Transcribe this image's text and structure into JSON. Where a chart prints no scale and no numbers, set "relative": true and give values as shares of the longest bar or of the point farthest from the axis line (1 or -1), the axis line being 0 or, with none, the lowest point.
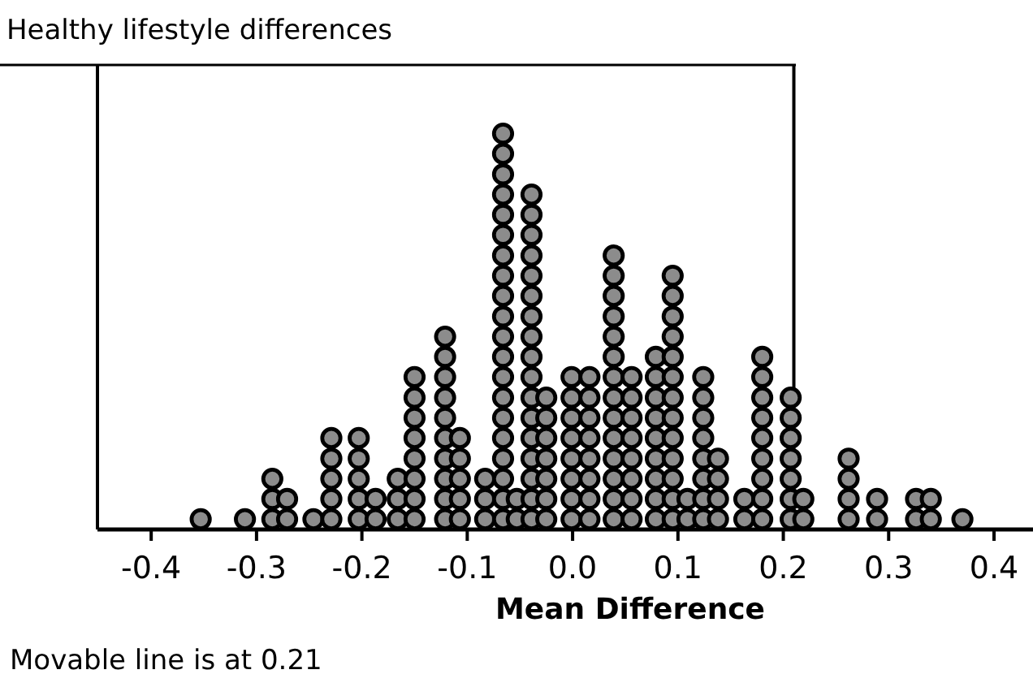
{
  "chart_data": {
    "type": "scatter",
    "relative": true,
    "title": "Healthy lifestyle differences",
    "xlabel": "Mean Difference",
    "annotations": [
      "Movable line is at 0.21"
    ],
    "marker": "circle",
    "tick_labels": "x",
    "xlim": [
      -0.451,
      0.437
    ],
    "xticks": [
      -0.4,
      -0.3,
      -0.2,
      -0.1,
      {
        "value": 0,
        "label": "0.0"
      },
      0.1,
      0.2,
      0.3,
      0.4
    ],
    "ref_lines": [
      {
        "axis": "x",
        "value": 0.21,
        "color": "#000000"
      }
    ],
    "series": [
      {
        "color": "#8c8c8c",
        "x": [
          -0.353
        ],
        "values": [
          0.026
        ]
      },
      {
        "color": "#8c8c8c",
        "x": [
          -0.311
        ],
        "values": [
          0.026
        ]
      },
      {
        "color": "#8c8c8c",
        "x": [
          -0.285,
          -0.285,
          -0.285
        ],
        "values": [
          0.026,
          0.077,
          0.128
        ]
      },
      {
        "color": "#8c8c8c",
        "x": [
          -0.271,
          -0.271
        ],
        "values": [
          0.026,
          0.077
        ]
      },
      {
        "color": "#8c8c8c",
        "x": [
          -0.246
        ],
        "values": [
          0.026
        ]
      },
      {
        "color": "#8c8c8c",
        "x": [
          -0.229,
          -0.229,
          -0.229,
          -0.229,
          -0.229
        ],
        "values": [
          0.026,
          0.077,
          0.128,
          0.179,
          0.231
        ]
      },
      {
        "color": "#8c8c8c",
        "x": [
          -0.203,
          -0.203,
          -0.203,
          -0.203,
          -0.203
        ],
        "values": [
          0.026,
          0.077,
          0.128,
          0.179,
          0.231
        ]
      },
      {
        "color": "#8c8c8c",
        "x": [
          -0.187,
          -0.187
        ],
        "values": [
          0.026,
          0.077
        ]
      },
      {
        "color": "#8c8c8c",
        "x": [
          -0.166,
          -0.166,
          -0.166
        ],
        "values": [
          0.026,
          0.077,
          0.128
        ]
      },
      {
        "color": "#8c8c8c",
        "x": [
          -0.15,
          -0.15,
          -0.15,
          -0.15,
          -0.15,
          -0.15,
          -0.15,
          -0.15
        ],
        "values": [
          0.026,
          0.077,
          0.128,
          0.179,
          0.231,
          0.282,
          0.333,
          0.385
        ]
      },
      {
        "color": "#8c8c8c",
        "x": [
          -0.121,
          -0.121,
          -0.121,
          -0.121,
          -0.121,
          -0.121,
          -0.121,
          -0.121,
          -0.121,
          -0.121
        ],
        "values": [
          0.026,
          0.077,
          0.128,
          0.179,
          0.231,
          0.282,
          0.333,
          0.385,
          0.436,
          0.487
        ]
      },
      {
        "color": "#8c8c8c",
        "x": [
          -0.107,
          -0.107,
          -0.107,
          -0.107,
          -0.107
        ],
        "values": [
          0.026,
          0.077,
          0.128,
          0.179,
          0.231
        ]
      },
      {
        "color": "#8c8c8c",
        "x": [
          -0.083,
          -0.083,
          -0.083
        ],
        "values": [
          0.026,
          0.077,
          0.128
        ]
      },
      {
        "color": "#8c8c8c",
        "x": [
          -0.066,
          -0.066,
          -0.066,
          -0.066,
          -0.066,
          -0.066,
          -0.066,
          -0.066,
          -0.066,
          -0.066,
          -0.066,
          -0.066,
          -0.066,
          -0.066,
          -0.066,
          -0.066,
          -0.066,
          -0.066,
          -0.066,
          -0.066
        ],
        "values": [
          0.026,
          0.077,
          0.128,
          0.179,
          0.231,
          0.282,
          0.333,
          0.385,
          0.436,
          0.487,
          0.538,
          0.59,
          0.641,
          0.692,
          0.744,
          0.795,
          0.846,
          0.897,
          0.949,
          1
        ]
      },
      {
        "color": "#8c8c8c",
        "x": [
          -0.053,
          -0.053
        ],
        "values": [
          0.026,
          0.077
        ]
      },
      {
        "color": "#8c8c8c",
        "x": [
          -0.039,
          -0.039,
          -0.039,
          -0.039,
          -0.039,
          -0.039,
          -0.039,
          -0.039,
          -0.039,
          -0.039,
          -0.039,
          -0.039,
          -0.039,
          -0.039,
          -0.039,
          -0.039,
          -0.039
        ],
        "values": [
          0.026,
          0.077,
          0.128,
          0.179,
          0.231,
          0.282,
          0.333,
          0.385,
          0.436,
          0.487,
          0.538,
          0.59,
          0.641,
          0.692,
          0.744,
          0.795,
          0.846
        ]
      },
      {
        "color": "#8c8c8c",
        "x": [
          -0.025,
          -0.025,
          -0.025,
          -0.025,
          -0.025,
          -0.025,
          -0.025
        ],
        "values": [
          0.026,
          0.077,
          0.128,
          0.179,
          0.231,
          0.282,
          0.333
        ]
      },
      {
        "color": "#8c8c8c",
        "x": [
          -0.001,
          -0.001,
          -0.001,
          -0.001,
          -0.001,
          -0.001,
          -0.001,
          -0.001
        ],
        "values": [
          0.026,
          0.077,
          0.128,
          0.179,
          0.231,
          0.282,
          0.333,
          0.385
        ]
      },
      {
        "color": "#8c8c8c",
        "x": [
          0.016,
          0.016,
          0.016,
          0.016,
          0.016,
          0.016,
          0.016,
          0.016
        ],
        "values": [
          0.026,
          0.077,
          0.128,
          0.179,
          0.231,
          0.282,
          0.333,
          0.385
        ]
      },
      {
        "color": "#8c8c8c",
        "x": [
          0.039,
          0.039,
          0.039,
          0.039,
          0.039,
          0.039,
          0.039,
          0.039,
          0.039,
          0.039,
          0.039,
          0.039,
          0.039,
          0.039
        ],
        "values": [
          0.026,
          0.077,
          0.128,
          0.179,
          0.231,
          0.282,
          0.333,
          0.385,
          0.436,
          0.487,
          0.538,
          0.59,
          0.641,
          0.692
        ]
      },
      {
        "color": "#8c8c8c",
        "x": [
          0.056,
          0.056,
          0.056,
          0.056,
          0.056,
          0.056,
          0.056,
          0.056
        ],
        "values": [
          0.026,
          0.077,
          0.128,
          0.179,
          0.231,
          0.282,
          0.333,
          0.385
        ]
      },
      {
        "color": "#8c8c8c",
        "x": [
          0.079,
          0.079,
          0.079,
          0.079,
          0.079,
          0.079,
          0.079,
          0.079,
          0.079
        ],
        "values": [
          0.026,
          0.077,
          0.128,
          0.179,
          0.231,
          0.282,
          0.333,
          0.385,
          0.436
        ]
      },
      {
        "color": "#8c8c8c",
        "x": [
          0.095,
          0.095,
          0.095,
          0.095,
          0.095,
          0.095,
          0.095,
          0.095,
          0.095,
          0.095,
          0.095,
          0.095,
          0.095
        ],
        "values": [
          0.026,
          0.077,
          0.128,
          0.179,
          0.231,
          0.282,
          0.333,
          0.385,
          0.436,
          0.487,
          0.538,
          0.59,
          0.641
        ]
      },
      {
        "color": "#8c8c8c",
        "x": [
          0.109,
          0.109
        ],
        "values": [
          0.026,
          0.077
        ]
      },
      {
        "color": "#8c8c8c",
        "x": [
          0.124,
          0.124,
          0.124,
          0.124,
          0.124,
          0.124,
          0.124,
          0.124
        ],
        "values": [
          0.026,
          0.077,
          0.128,
          0.179,
          0.231,
          0.282,
          0.333,
          0.385
        ]
      },
      {
        "color": "#8c8c8c",
        "x": [
          0.138,
          0.138,
          0.138,
          0.138
        ],
        "values": [
          0.026,
          0.077,
          0.128,
          0.179
        ]
      },
      {
        "color": "#8c8c8c",
        "x": [
          0.163,
          0.163
        ],
        "values": [
          0.026,
          0.077
        ]
      },
      {
        "color": "#8c8c8c",
        "x": [
          0.18,
          0.18,
          0.18,
          0.18,
          0.18,
          0.18,
          0.18,
          0.18,
          0.18
        ],
        "values": [
          0.026,
          0.077,
          0.128,
          0.179,
          0.231,
          0.282,
          0.333,
          0.385,
          0.436
        ]
      },
      {
        "color": "#8c8c8c",
        "x": [
          0.207,
          0.207,
          0.207,
          0.207,
          0.207,
          0.207,
          0.207
        ],
        "values": [
          0.026,
          0.077,
          0.128,
          0.179,
          0.231,
          0.282,
          0.333
        ]
      },
      {
        "color": "#8c8c8c",
        "x": [
          0.219,
          0.219
        ],
        "values": [
          0.026,
          0.077
        ]
      },
      {
        "color": "#8c8c8c",
        "x": [
          0.262,
          0.262,
          0.262,
          0.262
        ],
        "values": [
          0.026,
          0.077,
          0.128,
          0.179
        ]
      },
      {
        "color": "#8c8c8c",
        "x": [
          0.289,
          0.289
        ],
        "values": [
          0.026,
          0.077
        ]
      },
      {
        "color": "#8c8c8c",
        "x": [
          0.326,
          0.326
        ],
        "values": [
          0.026,
          0.077
        ]
      },
      {
        "color": "#8c8c8c",
        "x": [
          0.34,
          0.34
        ],
        "values": [
          0.026,
          0.077
        ]
      },
      {
        "color": "#8c8c8c",
        "x": [
          0.37
        ],
        "values": [
          0.026
        ]
      }
    ]
  }
}
